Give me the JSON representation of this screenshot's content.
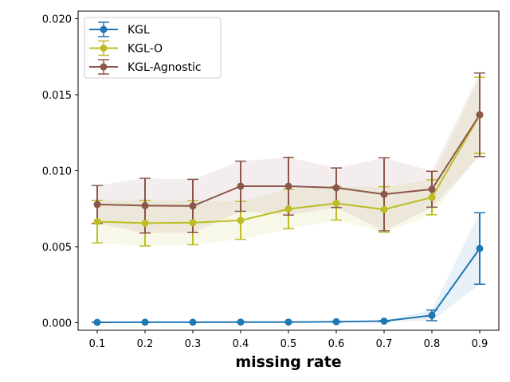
{
  "chart_data": {
    "type": "line",
    "title": "",
    "xlabel": "missing rate",
    "ylabel": "",
    "x": [
      0.1,
      0.2,
      0.3,
      0.4,
      0.5,
      0.6,
      0.7,
      0.8,
      0.9
    ],
    "x_tick_labels": [
      "0.1",
      "0.2",
      "0.3",
      "0.4",
      "0.5",
      "0.6",
      "0.7",
      "0.8",
      "0.9"
    ],
    "xlim": [
      0.06,
      0.94
    ],
    "ylim": [
      -0.0005,
      0.0205
    ],
    "y_ticks": [
      0.0,
      0.005,
      0.01,
      0.015,
      0.02
    ],
    "y_tick_labels": [
      "0.000",
      "0.005",
      "0.010",
      "0.015",
      "0.020"
    ],
    "grid": false,
    "legend_position": "top-left",
    "series": [
      {
        "name": "KGL",
        "color": "#1f77b4",
        "values": [
          2e-05,
          3e-05,
          3e-05,
          4e-05,
          4e-05,
          6e-05,
          0.0001,
          0.00048,
          0.00488
        ],
        "errors": [
          1e-05,
          1e-05,
          1e-05,
          1e-05,
          1e-05,
          2e-05,
          3e-05,
          0.00035,
          0.00235
        ]
      },
      {
        "name": "KGL-O",
        "color": "#bcbd22",
        "values": [
          0.00665,
          0.00655,
          0.00658,
          0.00673,
          0.00748,
          0.00785,
          0.00745,
          0.00825,
          0.01365
        ],
        "errors": [
          0.0014,
          0.0015,
          0.00145,
          0.00125,
          0.0013,
          0.0011,
          0.0015,
          0.00115,
          0.0025
        ]
      },
      {
        "name": "KGL-Agnostic",
        "color": "#8c564b",
        "values": [
          0.00778,
          0.0077,
          0.00768,
          0.00898,
          0.00898,
          0.00888,
          0.00845,
          0.00878,
          0.01368
        ],
        "errors": [
          0.00125,
          0.0018,
          0.00175,
          0.00165,
          0.0019,
          0.0013,
          0.0024,
          0.00118,
          0.00275
        ]
      }
    ]
  }
}
